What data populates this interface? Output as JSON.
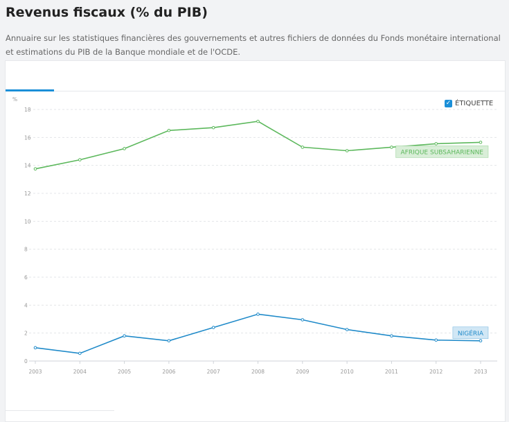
{
  "header": {
    "title": "Revenus fiscaux (% du PIB)",
    "subtitle": "Annuaire sur les statistiques financières des gouvernements et autres fichiers de données du Fonds monétaire international et estimations du PIB de la Banque mondiale et de l'OCDE."
  },
  "controls": {
    "label_toggle": "ÉTIQUETTE",
    "label_checked": true
  },
  "chart_data": {
    "type": "line",
    "title": "Revenus fiscaux (% du PIB)",
    "ylabel": "%",
    "xlabel": "",
    "ylim": [
      0,
      18
    ],
    "yticks": [
      "0",
      "2",
      "4",
      "6",
      "8",
      "10",
      "12",
      "14",
      "16",
      "18"
    ],
    "x": [
      "2003",
      "2004",
      "2005",
      "2006",
      "2007",
      "2008",
      "2009",
      "2010",
      "2011",
      "2012",
      "2013"
    ],
    "grid": true,
    "series": [
      {
        "name": "AFRIQUE SUBSAHARIENNE",
        "color": "#5cb85c",
        "label_bg": "#d9eed8",
        "values": [
          13.75,
          14.4,
          15.2,
          16.5,
          16.7,
          17.15,
          15.3,
          15.05,
          15.3,
          15.55,
          15.65
        ]
      },
      {
        "name": "NIGÉRIA",
        "color": "#1f8ac9",
        "label_bg": "#d1e7f5",
        "values": [
          0.95,
          0.55,
          1.8,
          1.45,
          2.4,
          3.35,
          2.95,
          2.25,
          1.8,
          1.5,
          1.45
        ]
      }
    ]
  }
}
